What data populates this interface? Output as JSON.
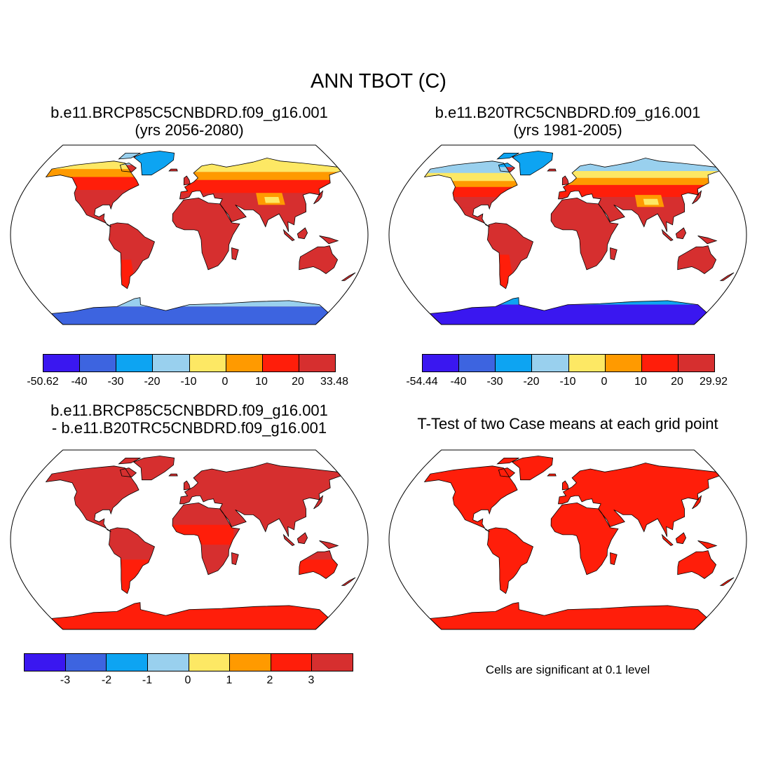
{
  "figure_title": "ANN TBOT (C)",
  "colors": {
    "palette": [
      "#3a17f0",
      "#3d64e0",
      "#0da4f2",
      "#99d0ee",
      "#fde864",
      "#ff9a00",
      "#ff1e0a",
      "#d62f2f"
    ],
    "ocean": "#ffffff",
    "coast": "#000000"
  },
  "panels": [
    {
      "title_line1": "b.e11.BRCP85C5CNBDRD.f09_g16.001",
      "title_line2": "(yrs 2056-2080)",
      "colorbar_labels": [
        "-50.62",
        "-40",
        "-30",
        "-20",
        "-10",
        "0",
        "10",
        "20",
        "33.48"
      ]
    },
    {
      "title_line1": "b.e11.B20TRC5CNBDRD.f09_g16.001",
      "title_line2": "(yrs 1981-2005)",
      "colorbar_labels": [
        "-54.44",
        "-40",
        "-30",
        "-20",
        "-10",
        "0",
        "10",
        "20",
        "29.92"
      ]
    },
    {
      "title_line1": "b.e11.BRCP85C5CNBDRD.f09_g16.001",
      "title_line2": "- b.e11.B20TRC5CNBDRD.f09_g16.001",
      "colorbar_labels": [
        "",
        "-3",
        "-2",
        "-1",
        "0",
        "1",
        "2",
        "3",
        ""
      ]
    },
    {
      "title_line1": "T-Test of two Case means at each grid point",
      "note": "Cells are significant at 0.1 level"
    }
  ]
}
